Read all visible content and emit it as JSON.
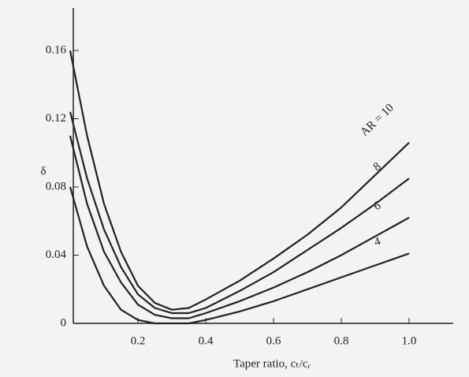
{
  "chart_data": {
    "type": "line",
    "x_label": "Taper ratio, cₜ/cᵣ",
    "y_label": "δ",
    "x": [
      0,
      0.05,
      0.1,
      0.15,
      0.2,
      0.25,
      0.3,
      0.35,
      0.4,
      0.5,
      0.6,
      0.7,
      0.8,
      0.9,
      1.0
    ],
    "series": [
      {
        "name": "AR = 10",
        "color": "#222222",
        "values": [
          0.16,
          0.11,
          0.07,
          0.042,
          0.022,
          0.012,
          0.008,
          0.009,
          0.014,
          0.025,
          0.038,
          0.052,
          0.068,
          0.087,
          0.106
        ]
      },
      {
        "name": "8",
        "color": "#222222",
        "values": [
          0.124,
          0.085,
          0.055,
          0.033,
          0.017,
          0.009,
          0.006,
          0.006,
          0.009,
          0.019,
          0.03,
          0.043,
          0.056,
          0.07,
          0.085
        ]
      },
      {
        "name": "6",
        "color": "#222222",
        "values": [
          0.11,
          0.07,
          0.042,
          0.024,
          0.011,
          0.005,
          0.003,
          0.003,
          0.006,
          0.013,
          0.021,
          0.03,
          0.04,
          0.051,
          0.062
        ]
      },
      {
        "name": "4",
        "color": "#222222",
        "values": [
          0.08,
          0.045,
          0.022,
          0.008,
          0.002,
          0,
          0,
          0,
          0.002,
          0.007,
          0.013,
          0.02,
          0.027,
          0.034,
          0.041
        ]
      }
    ],
    "xlim": [
      0,
      1.1
    ],
    "ylim": [
      0,
      0.185
    ],
    "xticks": [
      0.2,
      0.4,
      0.6,
      0.8,
      {
        "value": 1.0,
        "label": "1.0"
      }
    ],
    "yticks": [
      0,
      0.04,
      0.08,
      0.12,
      0.16
    ],
    "grid": false
  }
}
